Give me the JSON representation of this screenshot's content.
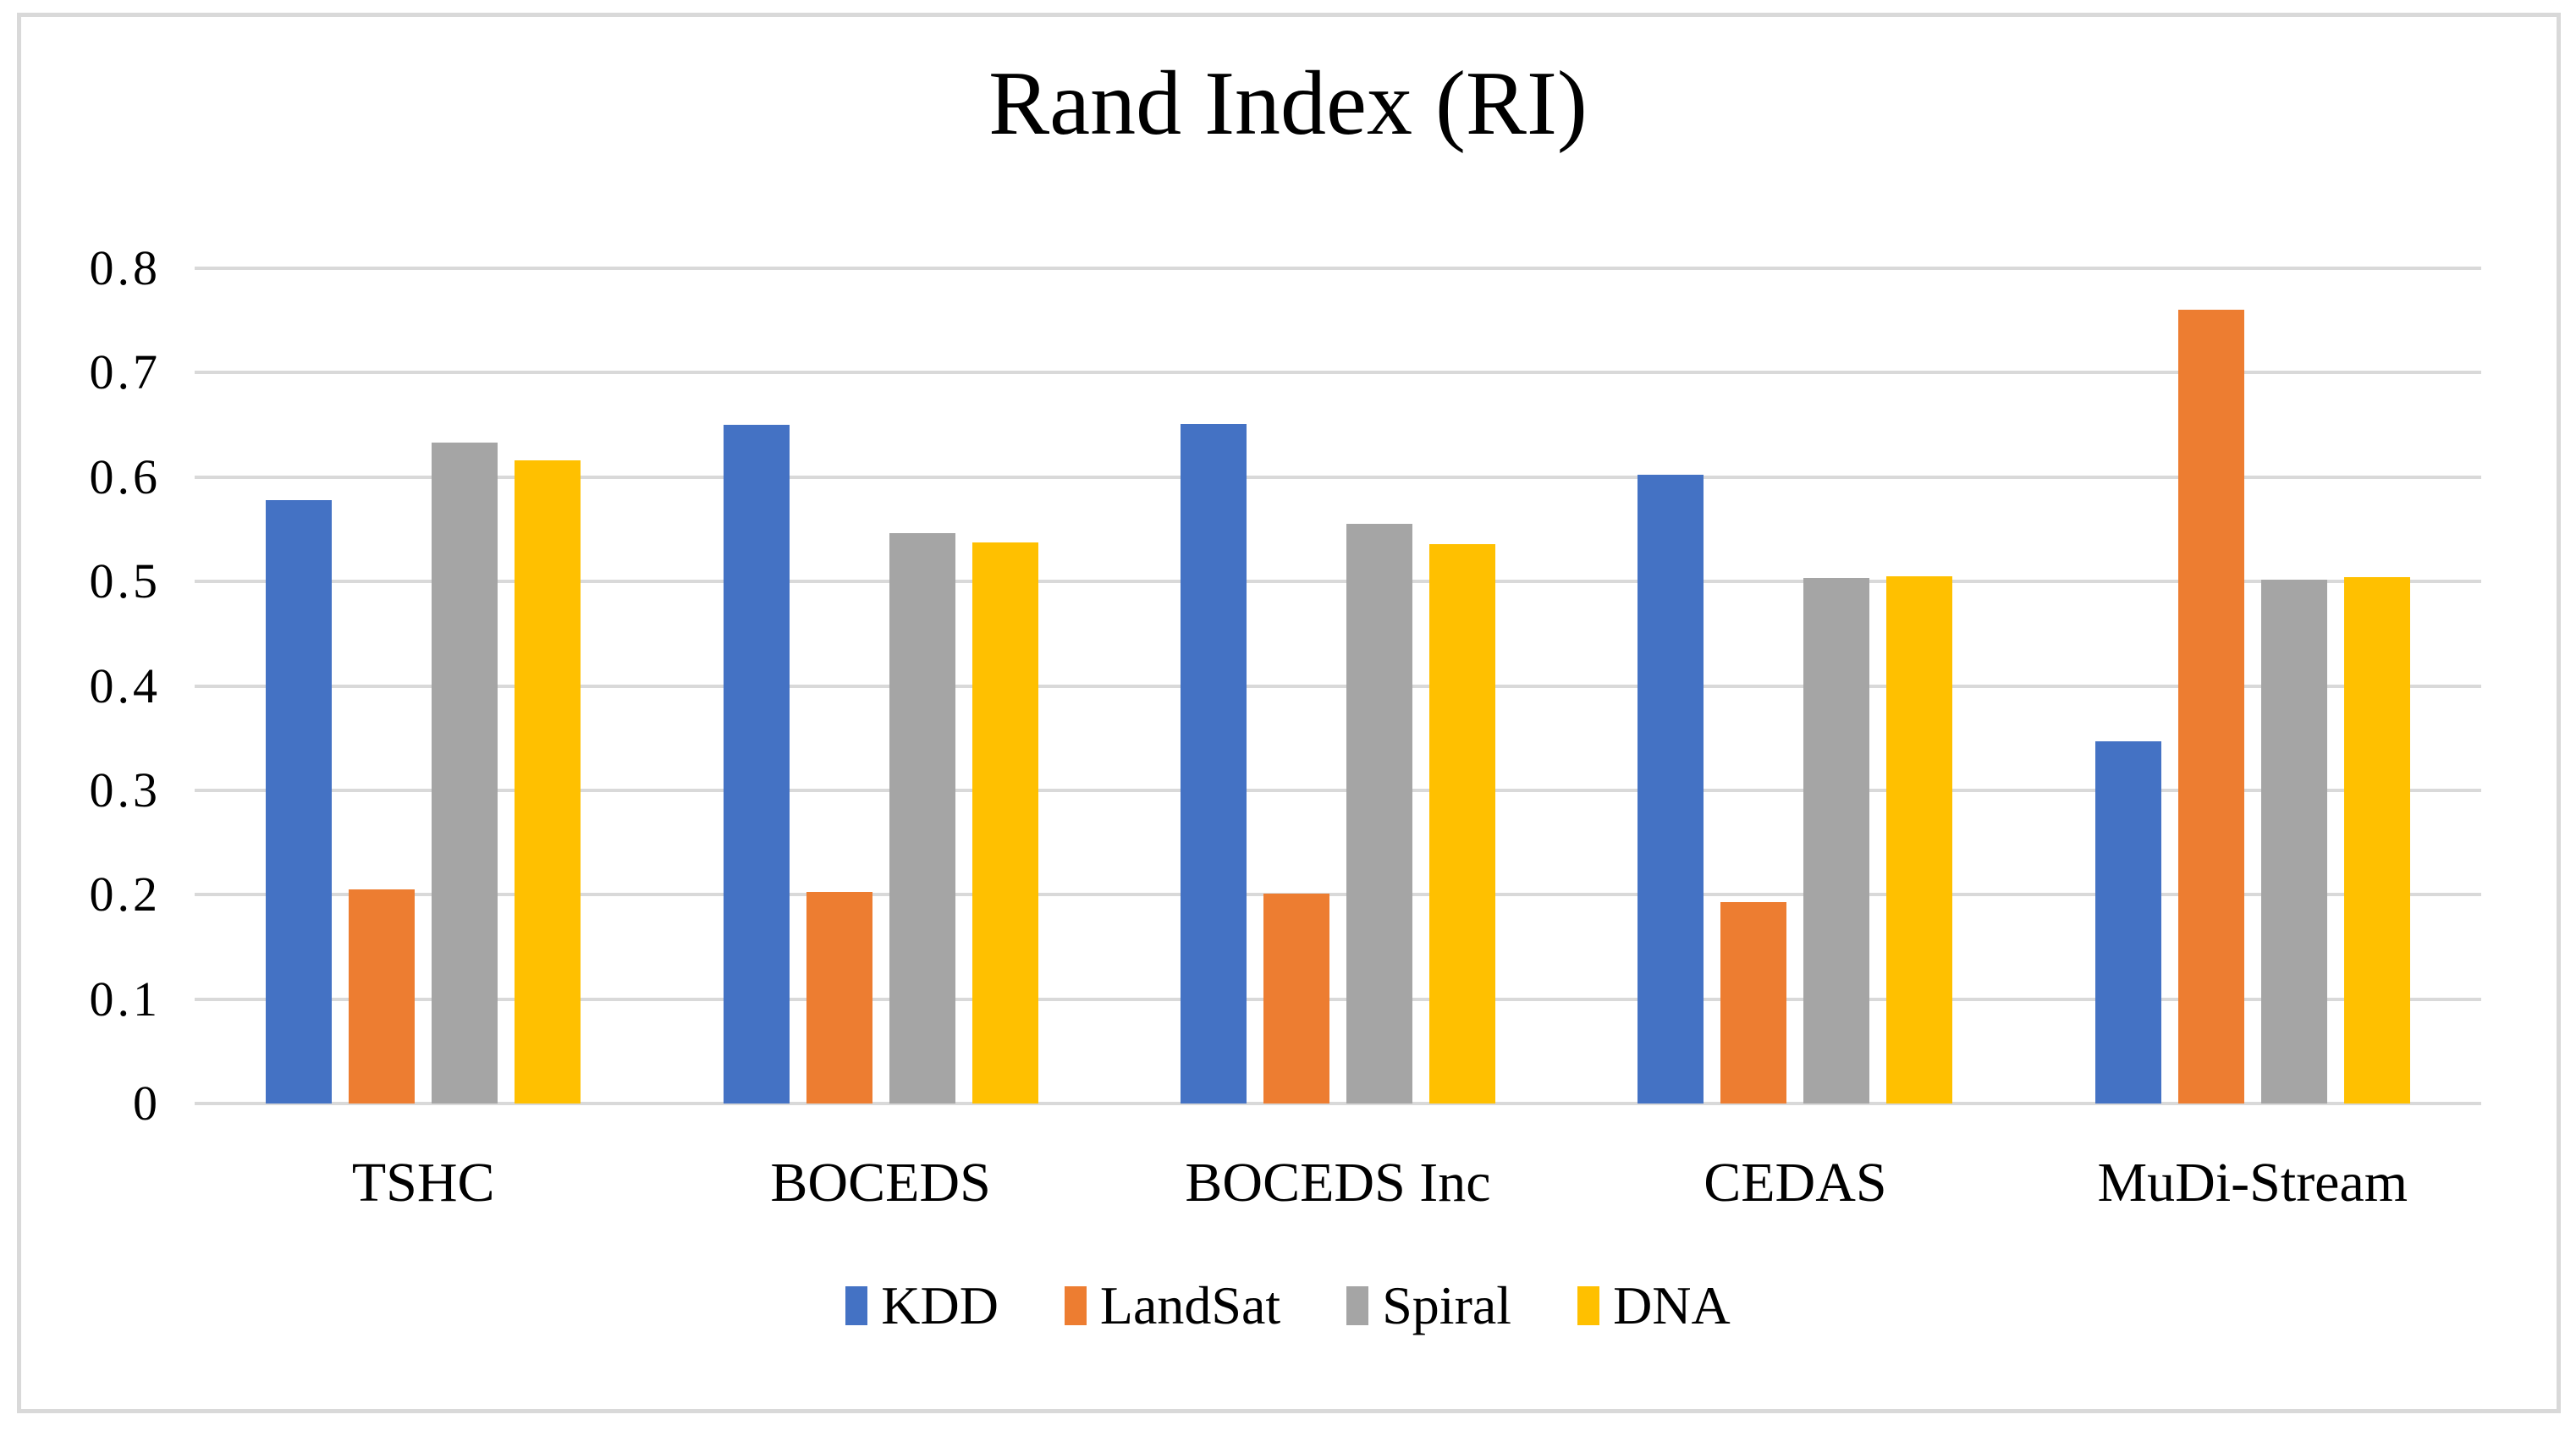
{
  "chart_data": {
    "type": "bar",
    "title": "Rand Index (RI)",
    "categories": [
      "TSHC",
      "BOCEDS",
      "BOCEDS Inc",
      "CEDAS",
      "MuDi-Stream"
    ],
    "series": [
      {
        "name": "KDD",
        "color": "#4472C4",
        "values": [
          0.578,
          0.65,
          0.651,
          0.602,
          0.347
        ]
      },
      {
        "name": "LandSat",
        "color": "#ED7D31",
        "values": [
          0.205,
          0.203,
          0.201,
          0.193,
          0.76
        ]
      },
      {
        "name": "Spiral",
        "color": "#A5A5A5",
        "values": [
          0.633,
          0.546,
          0.555,
          0.503,
          0.502
        ]
      },
      {
        "name": "DNA",
        "color": "#FFC000",
        "values": [
          0.616,
          0.537,
          0.536,
          0.505,
          0.504
        ]
      }
    ],
    "y_axis": {
      "min": 0,
      "max": 0.8,
      "step": 0.1,
      "tick_labels": [
        "0",
        "0.1",
        "0.2",
        "0.3",
        "0.4",
        "0.5",
        "0.6",
        "0.7",
        "0.8"
      ]
    },
    "grid": true,
    "legend_position": "bottom",
    "colors": {
      "gridline": "#D9D9D9",
      "frame_border": "#D9D9D9",
      "text": "#000000",
      "background": "#FFFFFF"
    }
  }
}
